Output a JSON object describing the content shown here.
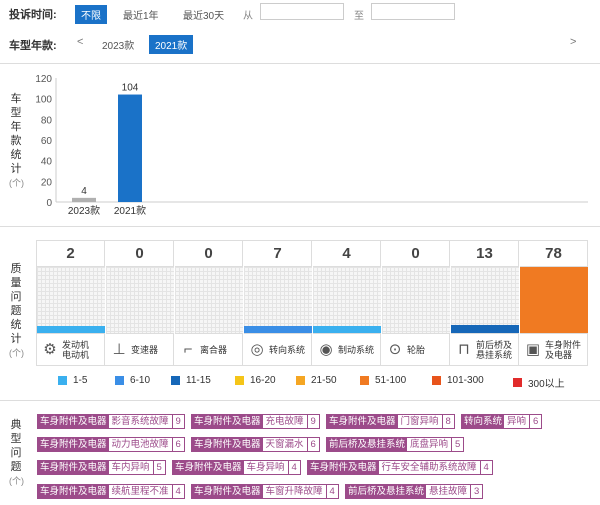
{
  "filter": {
    "complaint_time_label": "投诉时间:",
    "time_options": [
      "不限",
      "最近1年",
      "最近30天"
    ],
    "from_label": "从",
    "to_label": "至",
    "from_value": "",
    "to_value": "",
    "model_year_label": "车型年款:",
    "prev_arrow": "<",
    "next_arrow": ">",
    "year_options": [
      "2023款",
      "2021款"
    ]
  },
  "year_chart": {
    "side_label": "车型年款统计",
    "unit": "(个)",
    "y_ticks": [
      "120",
      "100",
      "80",
      "60",
      "40",
      "20",
      "0"
    ],
    "chart_data": {
      "type": "bar",
      "categories": [
        "2023款",
        "2021款"
      ],
      "values": [
        4,
        104
      ],
      "ylim": [
        0,
        120
      ],
      "colors": [
        "#b0b0b0",
        "#1a72c8"
      ]
    }
  },
  "quality": {
    "side_label": "质量问题统计",
    "unit": "(个)",
    "columns": [
      {
        "count": "2",
        "label": "发动机\n电动机",
        "icon": "engine-icon",
        "glyph": "⚙",
        "color": "#3ab0ef",
        "value": 2
      },
      {
        "count": "0",
        "label": "变速器",
        "icon": "gearbox-icon",
        "glyph": "⊥",
        "color": "#3ab0ef",
        "value": 0
      },
      {
        "count": "0",
        "label": "离合器",
        "icon": "clutch-icon",
        "glyph": "⌐",
        "color": "#3ab0ef",
        "value": 0
      },
      {
        "count": "7",
        "label": "转向系统",
        "icon": "steering-icon",
        "glyph": "◎",
        "color": "#3a8ee6",
        "value": 7
      },
      {
        "count": "4",
        "label": "制动系统",
        "icon": "brake-icon",
        "glyph": "◉",
        "color": "#3ab0ef",
        "value": 4
      },
      {
        "count": "0",
        "label": "轮胎",
        "icon": "tire-icon",
        "glyph": "⊙",
        "color": "#3ab0ef",
        "value": 0
      },
      {
        "count": "13",
        "label": "前后桥及\n悬挂系统",
        "icon": "suspension-icon",
        "glyph": "⊓",
        "color": "#1667b8",
        "value": 13
      },
      {
        "count": "78",
        "label": "车身附件\n及电器",
        "icon": "body-electrics-icon",
        "glyph": "▣",
        "color": "#f07a22",
        "value": 78
      }
    ],
    "legend": [
      {
        "label": "1-5",
        "color": "#3ab0ef"
      },
      {
        "label": "6-10",
        "color": "#3a8ee6"
      },
      {
        "label": "11-15",
        "color": "#1667b8"
      },
      {
        "label": "16-20",
        "color": "#f5c518"
      },
      {
        "label": "21-50",
        "color": "#f5a623"
      },
      {
        "label": "51-100",
        "color": "#f07a22"
      },
      {
        "label": "101-300",
        "color": "#e8541b"
      },
      {
        "label": "300以上",
        "color": "#e12b2b"
      }
    ]
  },
  "typical": {
    "side_label": "典型问题",
    "unit": "(个)",
    "tags": [
      {
        "category": "车身附件及电器",
        "desc": "影音系统故障",
        "count": "9"
      },
      {
        "category": "车身附件及电器",
        "desc": "充电故障",
        "count": "9"
      },
      {
        "category": "车身附件及电器",
        "desc": "门窗异响",
        "count": "8"
      },
      {
        "category": "转向系统",
        "desc": "异响",
        "count": "6"
      },
      {
        "category": "车身附件及电器",
        "desc": "动力电池故障",
        "count": "6"
      },
      {
        "category": "车身附件及电器",
        "desc": "天窗漏水",
        "count": "6"
      },
      {
        "category": "前后桥及悬挂系统",
        "desc": "底盘异响",
        "count": "5"
      },
      {
        "category": "车身附件及电器",
        "desc": "车内异响",
        "count": "5"
      },
      {
        "category": "车身附件及电器",
        "desc": "车身异响",
        "count": "4"
      },
      {
        "category": "车身附件及电器",
        "desc": "行车安全辅助系统故障",
        "count": "4"
      },
      {
        "category": "车身附件及电器",
        "desc": "续航里程不准",
        "count": "4"
      },
      {
        "category": "车身附件及电器",
        "desc": "车窗升降故障",
        "count": "4"
      },
      {
        "category": "前后桥及悬挂系统",
        "desc": "悬挂故障",
        "count": "3"
      }
    ]
  }
}
